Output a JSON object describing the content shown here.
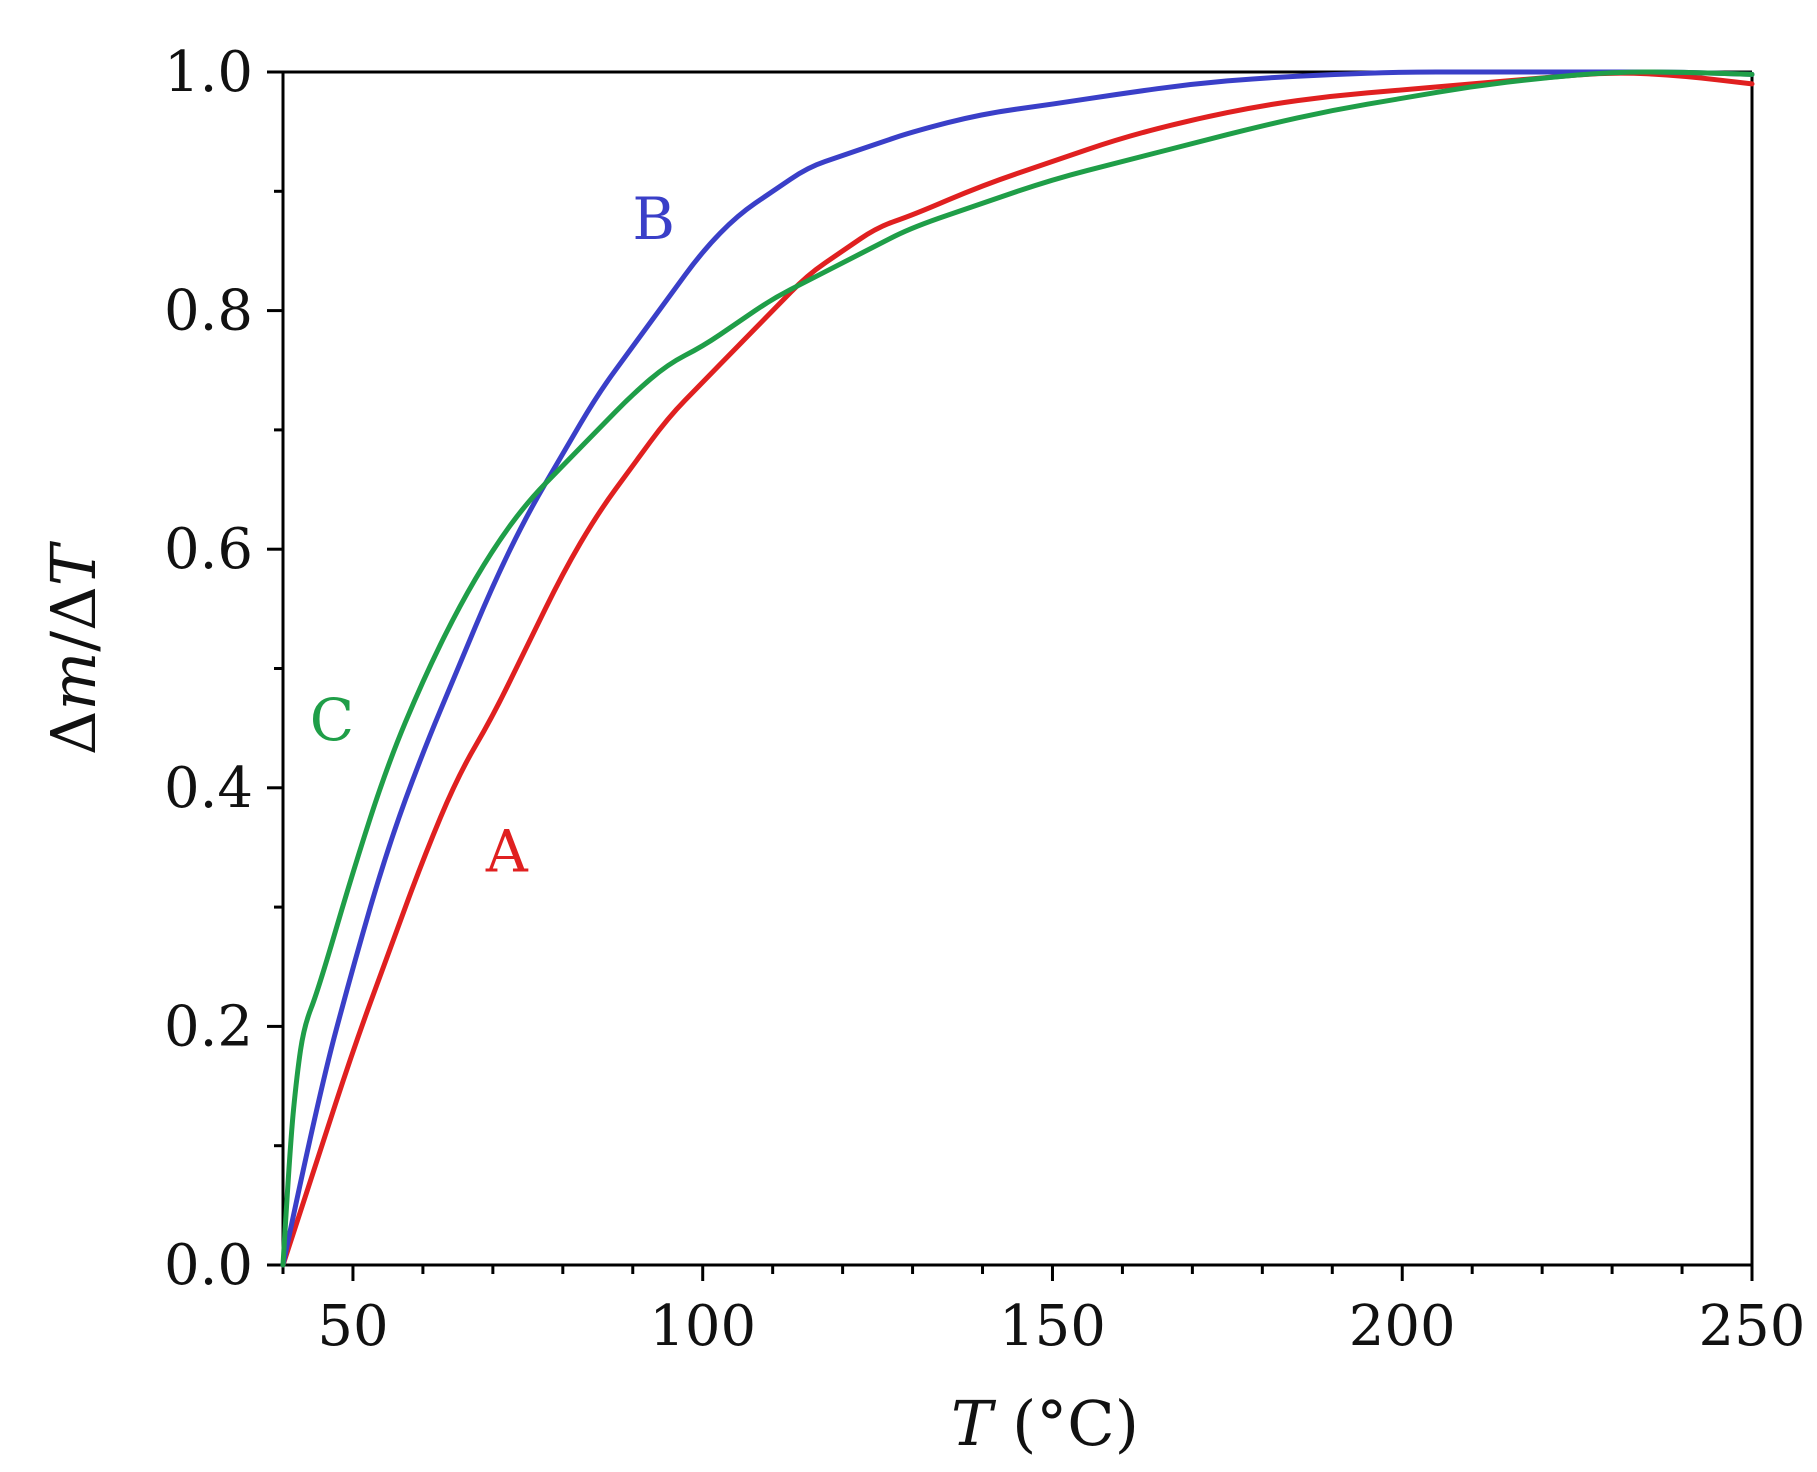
{
  "chart_data": {
    "type": "line",
    "title": "",
    "xlabel_var": "T",
    "xlabel_unit": " (°C)",
    "ylabel_parts": [
      "Δ",
      "m",
      "/Δ",
      "T"
    ],
    "xlim": [
      40,
      250
    ],
    "ylim": [
      0.0,
      1.0
    ],
    "x_major_ticks": [
      50,
      100,
      150,
      200,
      250
    ],
    "x_tick_labels": [
      "50",
      "100",
      "150",
      "200",
      "250"
    ],
    "y_major_ticks": [
      0.0,
      0.2,
      0.4,
      0.6,
      0.8,
      1.0
    ],
    "y_tick_labels": [
      "0.0",
      "0.2",
      "0.4",
      "0.6",
      "0.8",
      "1.0"
    ],
    "grid": false,
    "series": [
      {
        "name": "A",
        "color": "#e02020",
        "label_at": [
          72,
          0.33
        ],
        "x": [
          40,
          45,
          50,
          55,
          60,
          65,
          70,
          75,
          80,
          85,
          90,
          95,
          100,
          105,
          110,
          115,
          120,
          125,
          130,
          140,
          150,
          160,
          170,
          180,
          190,
          200,
          210,
          220,
          230,
          240,
          250
        ],
        "y": [
          0.0,
          0.09,
          0.18,
          0.26,
          0.34,
          0.41,
          0.46,
          0.52,
          0.58,
          0.63,
          0.67,
          0.71,
          0.74,
          0.77,
          0.8,
          0.83,
          0.85,
          0.87,
          0.88,
          0.905,
          0.925,
          0.945,
          0.96,
          0.972,
          0.98,
          0.985,
          0.99,
          0.995,
          1.0,
          0.997,
          0.99
        ]
      },
      {
        "name": "B",
        "color": "#3a3fc8",
        "label_at": [
          93,
          0.86
        ],
        "x": [
          40,
          45,
          50,
          55,
          60,
          65,
          70,
          75,
          80,
          85,
          90,
          95,
          100,
          105,
          110,
          115,
          120,
          125,
          130,
          140,
          150,
          160,
          170,
          180,
          190,
          200,
          210,
          220,
          230,
          240,
          250
        ],
        "y": [
          0.0,
          0.14,
          0.25,
          0.35,
          0.43,
          0.5,
          0.57,
          0.63,
          0.68,
          0.73,
          0.77,
          0.81,
          0.85,
          0.88,
          0.9,
          0.92,
          0.93,
          0.94,
          0.95,
          0.965,
          0.973,
          0.982,
          0.99,
          0.995,
          0.998,
          1.0,
          1.0,
          1.0,
          1.0,
          1.0,
          0.998
        ]
      },
      {
        "name": "C",
        "color": "#1f9e48",
        "label_at": [
          47,
          0.44
        ],
        "x": [
          40,
          41,
          42,
          43,
          45,
          50,
          55,
          60,
          65,
          70,
          75,
          80,
          85,
          90,
          95,
          100,
          105,
          110,
          115,
          120,
          125,
          130,
          140,
          150,
          160,
          170,
          180,
          190,
          200,
          210,
          220,
          230,
          240,
          250
        ],
        "y": [
          0.0,
          0.1,
          0.16,
          0.2,
          0.23,
          0.33,
          0.42,
          0.49,
          0.55,
          0.6,
          0.64,
          0.67,
          0.7,
          0.73,
          0.755,
          0.77,
          0.79,
          0.81,
          0.825,
          0.84,
          0.855,
          0.87,
          0.89,
          0.91,
          0.925,
          0.94,
          0.955,
          0.968,
          0.978,
          0.988,
          0.995,
          1.0,
          1.0,
          0.998
        ]
      }
    ]
  }
}
